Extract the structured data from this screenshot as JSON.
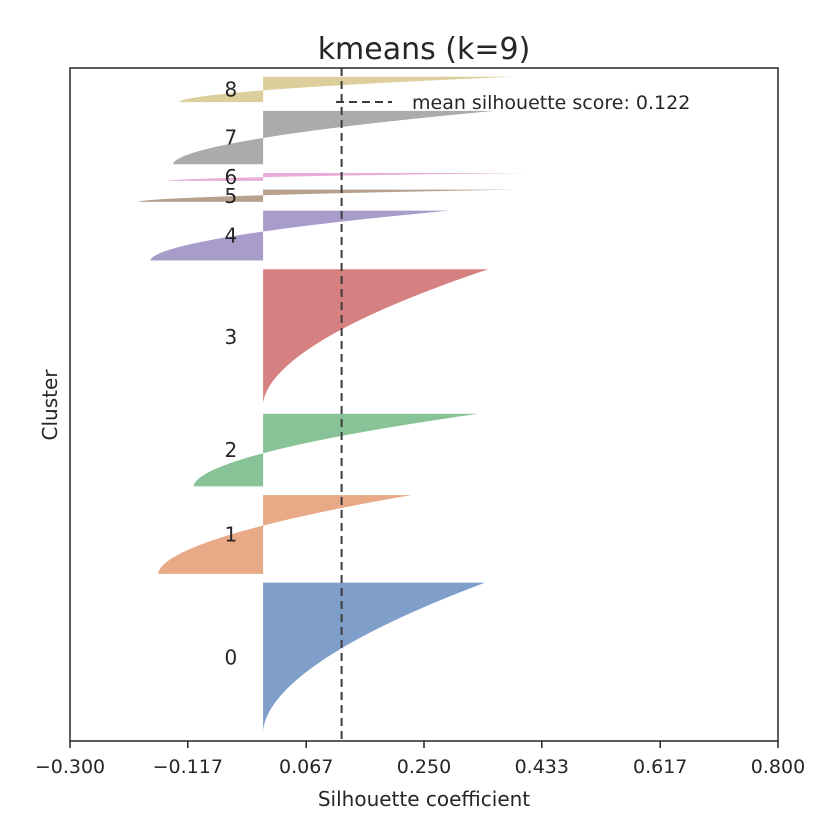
{
  "chart_data": {
    "type": "silhouette",
    "title": "kmeans (k=9)",
    "xlabel": "Silhouette coefficient",
    "ylabel": "Cluster",
    "xlim": [
      -0.3,
      0.8
    ],
    "xticks": [
      -0.3,
      -0.117,
      0.067,
      0.25,
      0.433,
      0.617,
      0.8
    ],
    "xtick_labels": [
      "−0.300",
      "−0.117",
      "0.067",
      "0.250",
      "0.433",
      "0.617",
      "0.800"
    ],
    "mean_silhouette": 0.122,
    "legend": {
      "label": "mean silhouette score: 0.122",
      "position": "top-right"
    },
    "grid": false,
    "clusters": [
      {
        "label": "0",
        "size": 171,
        "max": 0.345,
        "min": 0.0,
        "neg_frac": 0.0,
        "color": "#7f9ec9"
      },
      {
        "label": "1",
        "size": 90,
        "max": 0.23,
        "min": -0.163,
        "neg_frac": 0.45,
        "color": "#e8a986"
      },
      {
        "label": "2",
        "size": 83,
        "max": 0.335,
        "min": -0.108,
        "neg_frac": 0.25,
        "color": "#87c396"
      },
      {
        "label": "3",
        "size": 155,
        "max": 0.35,
        "min": 0.0,
        "neg_frac": 0.0,
        "color": "#d58182"
      },
      {
        "label": "4",
        "size": 57,
        "max": 0.29,
        "min": -0.175,
        "neg_frac": 0.45,
        "color": "#a89ccb"
      },
      {
        "label": "5",
        "size": 14,
        "max": 0.39,
        "min": -0.195,
        "neg_frac": 0.2,
        "color": "#b6a08e"
      },
      {
        "label": "6",
        "size": 9,
        "max": 0.41,
        "min": -0.15,
        "neg_frac": 0.2,
        "color": "#e8aed7"
      },
      {
        "label": "7",
        "size": 61,
        "max": 0.36,
        "min": -0.14,
        "neg_frac": 0.2,
        "color": "#ababab"
      },
      {
        "label": "8",
        "size": 29,
        "max": 0.39,
        "min": -0.13,
        "neg_frac": 0.25,
        "color": "#dccf9b"
      }
    ]
  }
}
